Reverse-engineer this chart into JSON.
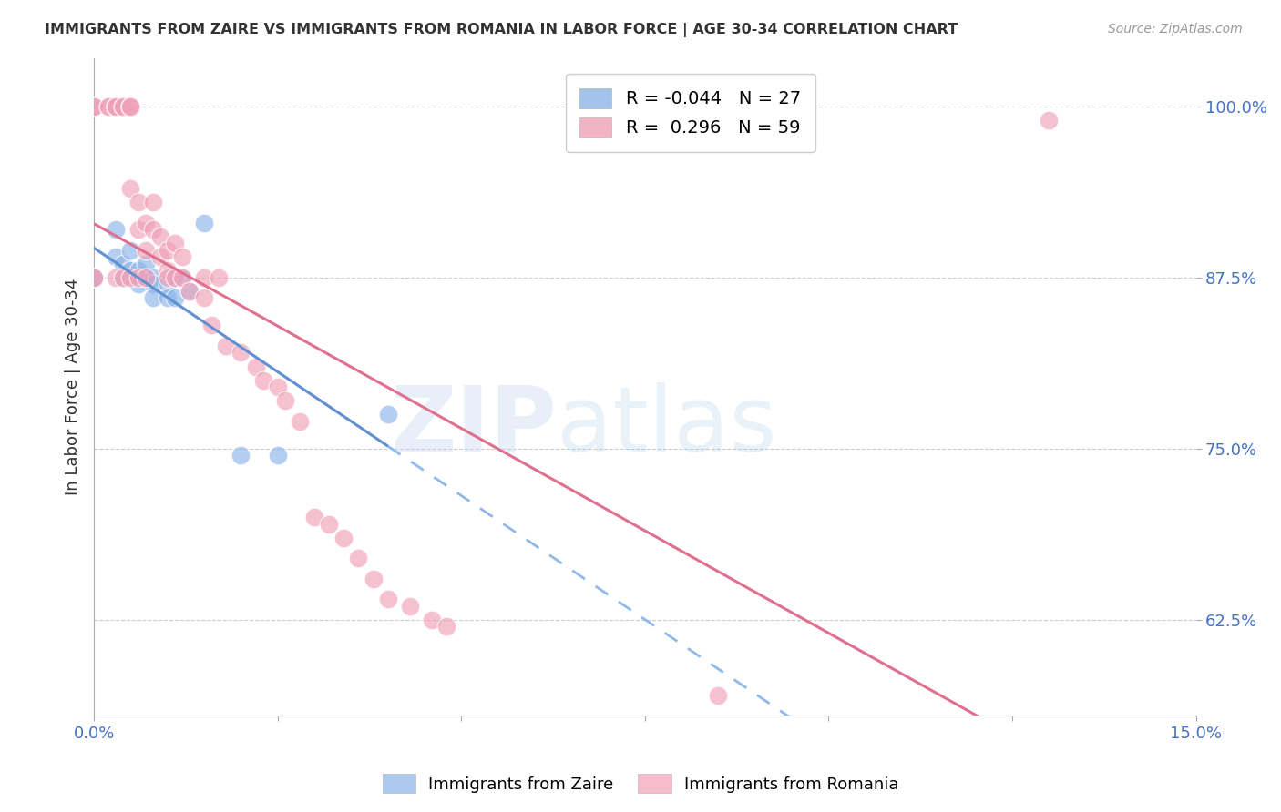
{
  "title": "IMMIGRANTS FROM ZAIRE VS IMMIGRANTS FROM ROMANIA IN LABOR FORCE | AGE 30-34 CORRELATION CHART",
  "source": "Source: ZipAtlas.com",
  "ylabel": "In Labor Force | Age 30-34",
  "xlim": [
    0.0,
    0.15
  ],
  "ylim": [
    0.555,
    1.035
  ],
  "yticks": [
    0.625,
    0.75,
    0.875,
    1.0
  ],
  "ytick_labels": [
    "62.5%",
    "75.0%",
    "87.5%",
    "100.0%"
  ],
  "xticks": [
    0.0,
    0.025,
    0.05,
    0.075,
    0.1,
    0.125,
    0.15
  ],
  "xtick_labels": [
    "0.0%",
    "",
    "",
    "",
    "",
    "",
    "15.0%"
  ],
  "zaire_color": "#8AB4E8",
  "romania_color": "#F0A0B8",
  "zaire_line_color": "#6090D0",
  "zaire_dash_color": "#90B8E8",
  "romania_line_color": "#E07090",
  "zaire_R": -0.044,
  "zaire_N": 27,
  "romania_R": 0.296,
  "romania_N": 59,
  "zaire_x": [
    0.0,
    0.0,
    0.0,
    0.0,
    0.003,
    0.003,
    0.004,
    0.004,
    0.005,
    0.005,
    0.006,
    0.006,
    0.007,
    0.007,
    0.008,
    0.008,
    0.008,
    0.01,
    0.01,
    0.011,
    0.011,
    0.012,
    0.013,
    0.015,
    0.02,
    0.025,
    0.04
  ],
  "zaire_y": [
    0.875,
    0.875,
    0.875,
    0.875,
    0.91,
    0.89,
    0.885,
    0.875,
    0.895,
    0.88,
    0.88,
    0.87,
    0.885,
    0.875,
    0.875,
    0.87,
    0.86,
    0.87,
    0.86,
    0.875,
    0.86,
    0.875,
    0.865,
    0.915,
    0.745,
    0.745,
    0.775
  ],
  "romania_x": [
    0.0,
    0.0,
    0.0,
    0.0,
    0.0,
    0.002,
    0.002,
    0.003,
    0.003,
    0.003,
    0.003,
    0.004,
    0.004,
    0.004,
    0.005,
    0.005,
    0.005,
    0.005,
    0.005,
    0.006,
    0.006,
    0.006,
    0.007,
    0.007,
    0.007,
    0.008,
    0.008,
    0.009,
    0.009,
    0.01,
    0.01,
    0.01,
    0.011,
    0.011,
    0.012,
    0.012,
    0.013,
    0.015,
    0.015,
    0.016,
    0.017,
    0.018,
    0.02,
    0.022,
    0.023,
    0.025,
    0.026,
    0.028,
    0.03,
    0.032,
    0.034,
    0.036,
    0.038,
    0.04,
    0.043,
    0.046,
    0.048,
    0.085,
    0.13
  ],
  "romania_y": [
    1.0,
    1.0,
    1.0,
    0.875,
    0.875,
    1.0,
    1.0,
    1.0,
    1.0,
    1.0,
    0.875,
    0.875,
    1.0,
    1.0,
    1.0,
    1.0,
    1.0,
    0.94,
    0.875,
    0.93,
    0.91,
    0.875,
    0.915,
    0.895,
    0.875,
    0.93,
    0.91,
    0.905,
    0.89,
    0.895,
    0.88,
    0.875,
    0.9,
    0.875,
    0.89,
    0.875,
    0.865,
    0.875,
    0.86,
    0.84,
    0.875,
    0.825,
    0.82,
    0.81,
    0.8,
    0.795,
    0.785,
    0.77,
    0.7,
    0.695,
    0.685,
    0.67,
    0.655,
    0.64,
    0.635,
    0.625,
    0.62,
    0.57,
    0.99
  ],
  "bg_color": "#FFFFFF",
  "grid_color": "#CCCCCC",
  "tick_color": "#4472C4"
}
